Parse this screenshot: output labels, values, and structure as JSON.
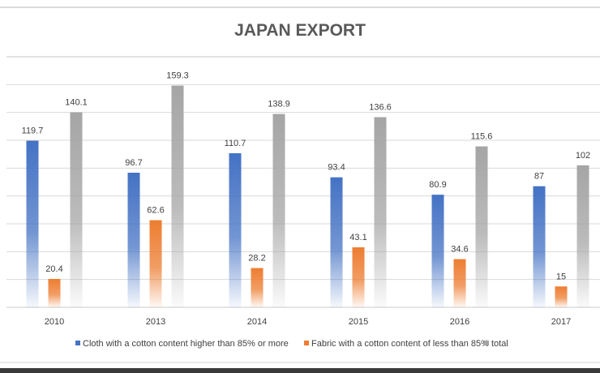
{
  "chart_data": {
    "type": "bar",
    "title": "JAPAN EXPORT",
    "xlabel": "",
    "ylabel": "",
    "ylim": [
      0,
      180
    ],
    "grid": true,
    "legend_position": "bottom",
    "categories": [
      "2010",
      "2013",
      "2014",
      "2015",
      "2016",
      "2017"
    ],
    "series": [
      {
        "name": "Cloth with a cotton content higher than 85% or more",
        "color": "#4472C4",
        "values": [
          119.7,
          96.7,
          110.7,
          93.4,
          80.9,
          87
        ]
      },
      {
        "name": "Fabric with a cotton content of less than 85%",
        "color": "#ED7D31",
        "values": [
          20.4,
          62.6,
          28.2,
          43.1,
          34.6,
          15
        ]
      },
      {
        "name": "total",
        "color": "#A5A5A5",
        "values": [
          140.1,
          159.3,
          138.9,
          136.6,
          115.6,
          102
        ]
      }
    ]
  }
}
